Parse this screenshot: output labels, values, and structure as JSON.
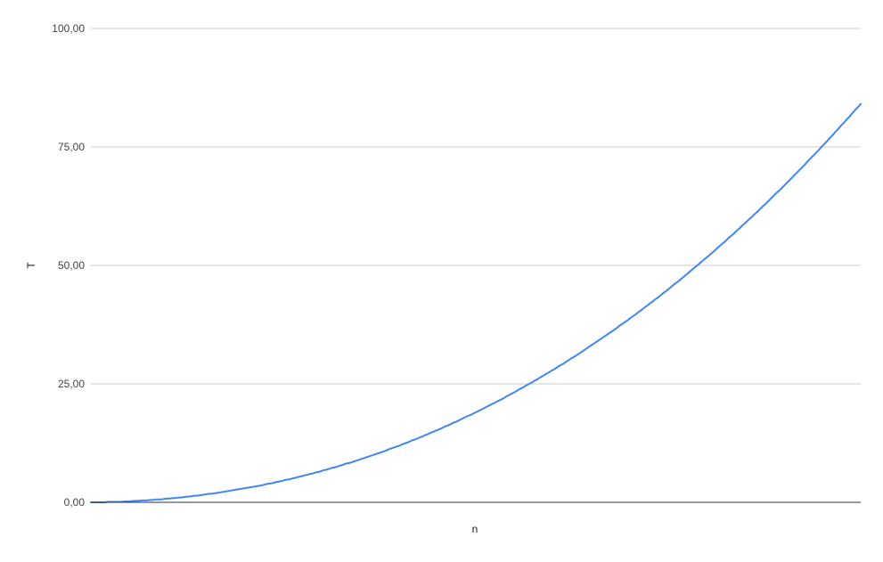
{
  "chart_data": {
    "type": "line",
    "title": "",
    "xlabel": "n",
    "ylabel": "T",
    "ylim": [
      0,
      100
    ],
    "y_ticks": [
      {
        "value": 0,
        "label": "0,00"
      },
      {
        "value": 25,
        "label": "25,00"
      },
      {
        "value": 50,
        "label": "50,00"
      },
      {
        "value": 75,
        "label": "75,00"
      },
      {
        "value": 100,
        "label": "100,00"
      }
    ],
    "grid": true,
    "legend": "none",
    "series": [
      {
        "color": "#4285f4",
        "values": [
          0,
          0.0,
          0.0,
          0.0,
          0.0,
          0.0,
          0.1,
          0.1,
          0.1,
          0.1,
          0.1,
          0.1,
          0.2,
          0.2,
          0.2,
          0.3,
          0.3,
          0.3,
          0.4,
          0.4,
          0.4,
          0.5,
          0.5,
          0.6,
          0.6,
          0.6,
          0.7,
          0.8,
          0.8,
          0.9,
          0.9,
          1.0,
          1.0,
          1.1,
          1.2,
          1.2,
          1.3,
          1.4,
          1.4,
          1.5,
          1.6,
          1.7,
          1.8,
          1.8,
          1.9,
          2.0,
          2.1,
          2.2,
          2.3,
          2.4,
          2.5,
          2.6,
          2.7,
          2.8,
          2.9,
          3.0,
          3.1,
          3.2,
          3.3,
          3.4,
          3.5,
          3.6,
          3.8,
          3.9,
          4.0,
          4.1,
          4.3,
          4.4,
          4.5,
          4.7,
          4.8,
          4.9,
          5.1,
          5.2,
          5.4,
          5.5,
          5.7,
          5.8,
          6.0,
          6.1,
          6.3,
          6.4,
          6.6,
          6.8,
          6.9,
          7.1,
          7.3,
          7.4,
          7.6,
          7.8,
          8.0,
          8.2,
          8.3,
          8.5,
          8.7,
          8.9,
          9.1,
          9.3,
          9.5,
          9.7,
          9.9,
          10.1,
          10.3,
          10.5,
          10.7,
          10.9,
          11.2,
          11.4,
          11.6,
          11.8,
          12.0,
          12.3,
          12.5,
          12.7,
          13.0,
          13.2,
          13.4,
          13.7,
          13.9,
          14.2,
          14.4,
          14.7,
          14.9,
          15.2,
          15.4,
          15.7,
          16.0,
          16.2,
          16.5,
          16.8,
          17.0,
          17.3,
          17.6,
          17.9,
          18.2,
          18.4,
          18.7,
          19.0,
          19.3,
          19.6,
          19.9,
          20.2,
          20.5,
          20.8,
          21.1,
          21.4,
          21.7,
          22.0,
          22.4,
          22.7,
          23.0,
          23.3,
          23.7,
          24.0,
          24.3,
          24.7,
          25.0,
          25.3,
          25.7,
          26.0,
          26.4,
          26.7,
          27.1,
          27.4,
          27.8,
          28.1,
          28.5,
          28.9,
          29.2,
          29.6,
          30.0,
          30.4,
          30.7,
          31.1,
          31.5,
          31.9,
          32.3,
          32.7,
          33.1,
          33.5,
          33.9,
          34.3,
          34.7,
          35.1,
          35.5,
          35.9,
          36.3,
          36.7,
          37.2,
          37.6,
          38.0,
          38.4,
          38.9,
          39.3,
          39.7,
          40.2,
          40.6,
          41.1,
          41.5,
          42.0,
          42.4,
          42.9,
          43.3,
          43.8,
          44.3,
          44.7,
          45.2,
          45.7,
          46.2,
          46.6,
          47.1,
          47.6,
          48.1,
          48.6,
          49.1,
          49.6,
          50.1,
          50.6,
          51.1,
          51.6,
          52.1,
          52.6,
          53.1,
          53.7,
          54.2,
          54.7,
          55.2,
          55.8,
          56.3,
          56.8,
          57.4,
          57.9,
          58.5,
          59.0,
          59.6,
          60.1,
          60.7,
          61.2,
          61.8,
          62.4,
          62.9,
          63.5,
          64.1,
          64.7,
          65.3,
          65.8,
          66.4,
          67.0,
          67.6,
          68.2,
          68.8,
          69.4,
          70.0,
          70.6,
          71.2,
          71.9,
          72.5,
          73.1,
          73.7,
          74.3,
          75.0,
          75.6,
          76.2,
          76.9,
          77.5,
          78.2,
          78.8,
          79.5,
          80.1,
          80.8,
          81.4,
          82.1,
          82.8,
          83.4,
          84.1
        ]
      }
    ]
  }
}
